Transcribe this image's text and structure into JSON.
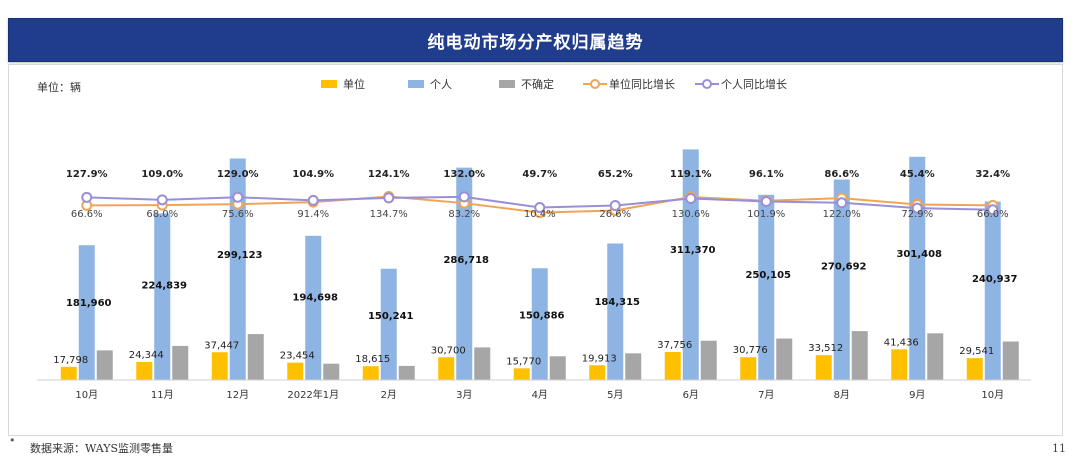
{
  "header": {
    "title": "纯电动市场分产权归属趋势"
  },
  "unit_label": "单位：辆",
  "footer": {
    "bullet": "•",
    "source": "数据来源：WAYS监测零售量",
    "page_number": "11"
  },
  "colors": {
    "title_bg": "#1f3c8d",
    "unit_bar": "#ffc000",
    "personal_bar": "#8eb4e3",
    "uncertain_bar": "#a6a6a6",
    "unit_growth_line": "#f0a45a",
    "personal_growth_line": "#9a8fd6"
  },
  "chart_data": {
    "type": "bar",
    "title": "纯电动市场分产权归属趋势",
    "categories": [
      "10月",
      "11月",
      "12月",
      "2022年1月",
      "2月",
      "3月",
      "4月",
      "5月",
      "6月",
      "7月",
      "8月",
      "9月",
      "10月"
    ],
    "series": [
      {
        "name": "单位",
        "type": "bar",
        "values": [
          17798,
          24344,
          37447,
          23454,
          18615,
          30700,
          15770,
          19913,
          37756,
          30776,
          33512,
          41436,
          29541
        ],
        "labels": [
          "17,798",
          "24,344",
          "37,447",
          "23,454",
          "18,615",
          "30,700",
          "15,770",
          "19,913",
          "37,756",
          "30,776",
          "33,512",
          "41,436",
          "29,541"
        ]
      },
      {
        "name": "个人",
        "type": "bar",
        "values": [
          181960,
          224839,
          299123,
          194698,
          150241,
          286718,
          150886,
          184315,
          311370,
          250105,
          270692,
          301408,
          240937
        ],
        "labels": [
          "181,960",
          "224,839",
          "299,123",
          "194,698",
          "150,241",
          "286,718",
          "150,886",
          "184,315",
          "311,370",
          "250,105",
          "270,692",
          "301,408",
          "240,937"
        ]
      },
      {
        "name": "不确定",
        "type": "bar",
        "values": [
          40000,
          46000,
          62000,
          22000,
          19000,
          44000,
          32000,
          36000,
          53000,
          56000,
          66000,
          63000,
          52000
        ]
      },
      {
        "name": "单位同比增长",
        "type": "line",
        "values": [
          66.6,
          68.0,
          75.6,
          91.4,
          134.7,
          83.2,
          10.4,
          26.6,
          130.6,
          101.9,
          122.0,
          72.9,
          66.0
        ],
        "labels": [
          "66.6%",
          "68.0%",
          "75.6%",
          "91.4%",
          "134.7%",
          "83.2%",
          "10.4%",
          "26.6%",
          "130.6%",
          "101.9%",
          "122.0%",
          "72.9%",
          "66.0%"
        ]
      },
      {
        "name": "个人同比增长",
        "type": "line",
        "values": [
          127.9,
          109.0,
          129.0,
          104.9,
          124.1,
          132.0,
          49.7,
          65.2,
          119.1,
          96.1,
          86.6,
          45.4,
          32.4
        ],
        "labels": [
          "127.9%",
          "109.0%",
          "129.0%",
          "104.9%",
          "124.1%",
          "132.0%",
          "49.7%",
          "65.2%",
          "119.1%",
          "96.1%",
          "86.6%",
          "45.4%",
          "32.4%"
        ]
      }
    ],
    "legend_position": "top",
    "grid": false
  }
}
